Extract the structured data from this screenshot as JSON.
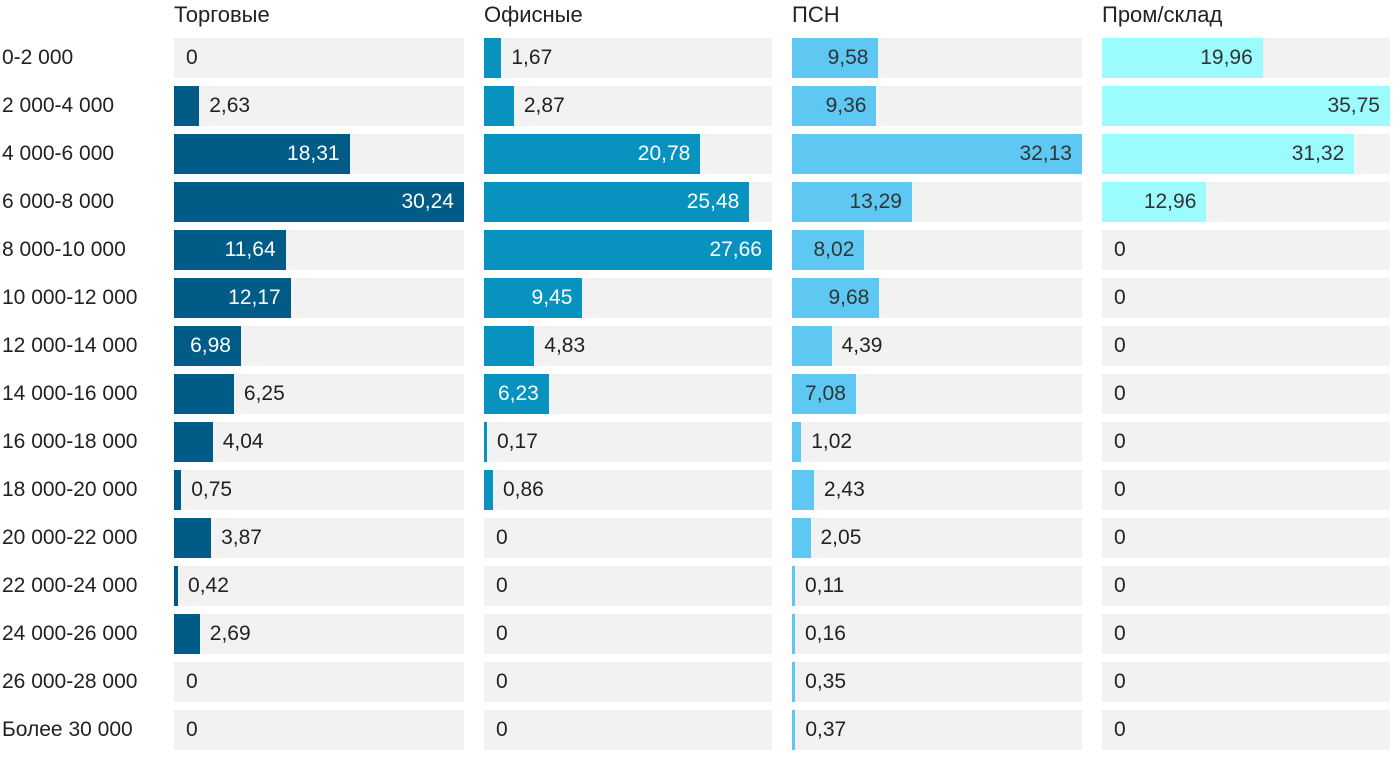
{
  "chart_data": {
    "type": "bar",
    "orientation": "horizontal",
    "categories": [
      "0-2 000",
      "2 000-4 000",
      "4 000-6 000",
      "6 000-8 000",
      "8 000-10 000",
      "10 000-12 000",
      "12 000-14 000",
      "14 000-16 000",
      "16 000-18 000",
      "18 000-20 000",
      "20 000-22 000",
      "22 000-24 000",
      "24 000-26 000",
      "26 000-28 000",
      "Более 30 000"
    ],
    "series": [
      {
        "name": "Торговые",
        "color": "#005b87",
        "labels": [
          "0",
          "2,63",
          "18,31",
          "30,24",
          "11,64",
          "12,17",
          "6,98",
          "6,25",
          "4,04",
          "0,75",
          "3,87",
          "0,42",
          "2,69",
          "0",
          "0"
        ],
        "values": [
          0,
          2.63,
          18.31,
          30.24,
          11.64,
          12.17,
          6.98,
          6.25,
          4.04,
          0.75,
          3.87,
          0.42,
          2.69,
          0,
          0
        ]
      },
      {
        "name": "Офисные",
        "color": "#0792c0",
        "labels": [
          "1,67",
          "2,87",
          "20,78",
          "25,48",
          "27,66",
          "9,45",
          "4,83",
          "6,23",
          "0,17",
          "0,86",
          "0",
          "0",
          "0",
          "0",
          "0"
        ],
        "values": [
          1.67,
          2.87,
          20.78,
          25.48,
          27.66,
          9.45,
          4.83,
          6.23,
          0.17,
          0.86,
          0,
          0,
          0,
          0,
          0
        ]
      },
      {
        "name": "ПСН",
        "color": "#5ec8f3",
        "labels": [
          "9,58",
          "9,36",
          "32,13",
          "13,29",
          "8,02",
          "9,68",
          "4,39",
          "7,08",
          "1,02",
          "2,43",
          "2,05",
          "0,11",
          "0,16",
          "0,35",
          "0,37"
        ],
        "values": [
          9.58,
          9.36,
          32.13,
          13.29,
          8.02,
          9.68,
          4.39,
          7.08,
          1.02,
          2.43,
          2.05,
          0.11,
          0.16,
          0.35,
          0.37
        ]
      },
      {
        "name": "Пром/склад",
        "color": "#9cfbfd",
        "labels": [
          "19,96",
          "35,75",
          "31,32",
          "12,96",
          "0",
          "0",
          "0",
          "0",
          "0",
          "0",
          "0",
          "0",
          "0",
          "0",
          "0"
        ],
        "values": [
          19.96,
          35.75,
          31.32,
          12.96,
          0,
          0,
          0,
          0,
          0,
          0,
          0,
          0,
          0,
          0,
          0
        ]
      }
    ],
    "value_colors": {
      "light_text": "#ffffff",
      "dark_text": "#333333",
      "track": "#f2f2f2"
    }
  }
}
